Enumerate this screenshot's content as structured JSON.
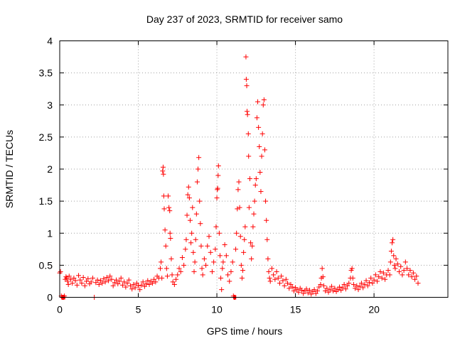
{
  "chart_data": {
    "type": "scatter",
    "title": "Day 237 of 2023, SRMTID for receiver samo",
    "xlabel": "GPS time / hours",
    "ylabel": "SRMTID / TECUs",
    "xlim": [
      0,
      24.7
    ],
    "ylim": [
      0,
      4
    ],
    "xticks": [
      0,
      5,
      10,
      15,
      20
    ],
    "xtick_labels": [
      "0",
      "5",
      "10",
      "15",
      "20"
    ],
    "yticks": [
      0,
      0.5,
      1,
      1.5,
      2,
      2.5,
      3,
      3.5,
      4
    ],
    "ytick_labels": [
      "0",
      "0.5",
      "1",
      "1.5",
      "2",
      "2.5",
      "3",
      "3.5",
      "4"
    ],
    "grid": true,
    "marker": "plus",
    "marker_color": "#ff0000",
    "series": [
      {
        "name": "SRMTID",
        "points": [
          [
            0.0,
            0.38
          ],
          [
            0.05,
            0.4
          ],
          [
            0.1,
            0.02
          ],
          [
            0.15,
            0.0
          ],
          [
            0.2,
            0.0
          ],
          [
            0.25,
            0.0
          ],
          [
            0.3,
            0.02
          ],
          [
            0.35,
            0.28
          ],
          [
            0.4,
            0.32
          ],
          [
            0.45,
            0.3
          ],
          [
            0.5,
            0.25
          ],
          [
            0.55,
            0.2
          ],
          [
            0.6,
            0.33
          ],
          [
            0.7,
            0.28
          ],
          [
            0.8,
            0.22
          ],
          [
            0.9,
            0.3
          ],
          [
            1.0,
            0.26
          ],
          [
            1.1,
            0.19
          ],
          [
            1.2,
            0.34
          ],
          [
            1.3,
            0.27
          ],
          [
            1.4,
            0.22
          ],
          [
            1.5,
            0.31
          ],
          [
            1.6,
            0.18
          ],
          [
            1.7,
            0.25
          ],
          [
            1.8,
            0.29
          ],
          [
            1.9,
            0.21
          ],
          [
            2.0,
            0.24
          ],
          [
            2.1,
            0.3
          ],
          [
            2.2,
            0.0
          ],
          [
            2.3,
            0.23
          ],
          [
            2.4,
            0.27
          ],
          [
            2.5,
            0.2
          ],
          [
            2.6,
            0.26
          ],
          [
            2.7,
            0.22
          ],
          [
            2.8,
            0.29
          ],
          [
            2.9,
            0.24
          ],
          [
            3.0,
            0.31
          ],
          [
            3.1,
            0.26
          ],
          [
            3.2,
            0.33
          ],
          [
            3.3,
            0.28
          ],
          [
            3.4,
            0.18
          ],
          [
            3.5,
            0.23
          ],
          [
            3.6,
            0.27
          ],
          [
            3.7,
            0.21
          ],
          [
            3.8,
            0.25
          ],
          [
            3.9,
            0.3
          ],
          [
            4.0,
            0.19
          ],
          [
            4.1,
            0.24
          ],
          [
            4.2,
            0.16
          ],
          [
            4.3,
            0.22
          ],
          [
            4.4,
            0.27
          ],
          [
            4.5,
            0.18
          ],
          [
            4.6,
            0.13
          ],
          [
            4.7,
            0.2
          ],
          [
            4.8,
            0.15
          ],
          [
            4.9,
            0.22
          ],
          [
            5.0,
            0.18
          ],
          [
            5.1,
            0.12
          ],
          [
            5.2,
            0.19
          ],
          [
            5.3,
            0.24
          ],
          [
            5.4,
            0.17
          ],
          [
            5.5,
            0.21
          ],
          [
            5.6,
            0.26
          ],
          [
            5.7,
            0.2
          ],
          [
            5.8,
            0.25
          ],
          [
            5.9,
            0.22
          ],
          [
            6.0,
            0.28
          ],
          [
            6.1,
            0.24
          ],
          [
            6.2,
            0.33
          ],
          [
            6.3,
            0.3
          ],
          [
            6.4,
            0.45
          ],
          [
            6.45,
            0.55
          ],
          [
            6.5,
            0.3
          ],
          [
            6.55,
            1.97
          ],
          [
            6.58,
            2.03
          ],
          [
            6.6,
            1.92
          ],
          [
            6.62,
            1.58
          ],
          [
            6.65,
            1.38
          ],
          [
            6.7,
            1.05
          ],
          [
            6.75,
            0.8
          ],
          [
            6.8,
            0.45
          ],
          [
            6.85,
            0.33
          ],
          [
            6.9,
            1.58
          ],
          [
            6.95,
            1.4
          ],
          [
            7.0,
            1.35
          ],
          [
            7.02,
            1.0
          ],
          [
            7.05,
            0.92
          ],
          [
            7.1,
            0.6
          ],
          [
            7.15,
            0.35
          ],
          [
            7.2,
            0.24
          ],
          [
            7.3,
            0.2
          ],
          [
            7.4,
            0.28
          ],
          [
            7.5,
            0.35
          ],
          [
            7.6,
            0.45
          ],
          [
            7.7,
            0.4
          ],
          [
            7.8,
            0.62
          ],
          [
            7.9,
            0.5
          ],
          [
            8.0,
            0.75
          ],
          [
            8.05,
            0.9
          ],
          [
            8.1,
            1.28
          ],
          [
            8.15,
            1.6
          ],
          [
            8.2,
            1.72
          ],
          [
            8.25,
            1.55
          ],
          [
            8.3,
            1.2
          ],
          [
            8.35,
            0.85
          ],
          [
            8.4,
            1.0
          ],
          [
            8.45,
            1.4
          ],
          [
            8.5,
            0.7
          ],
          [
            8.55,
            0.4
          ],
          [
            8.6,
            0.55
          ],
          [
            8.65,
            0.9
          ],
          [
            8.7,
            1.3
          ],
          [
            8.75,
            1.8
          ],
          [
            8.8,
            2.0
          ],
          [
            8.85,
            2.18
          ],
          [
            8.9,
            1.5
          ],
          [
            8.95,
            1.15
          ],
          [
            9.0,
            0.8
          ],
          [
            9.05,
            0.45
          ],
          [
            9.1,
            0.35
          ],
          [
            9.2,
            0.6
          ],
          [
            9.3,
            0.5
          ],
          [
            9.4,
            0.8
          ],
          [
            9.5,
            0.95
          ],
          [
            9.6,
            0.7
          ],
          [
            9.7,
            0.4
          ],
          [
            9.8,
            0.55
          ],
          [
            9.9,
            0.75
          ],
          [
            9.95,
            1.1
          ],
          [
            10.0,
            1.55
          ],
          [
            10.03,
            1.68
          ],
          [
            10.05,
            1.7
          ],
          [
            10.08,
            1.9
          ],
          [
            10.1,
            2.05
          ],
          [
            10.15,
            1.0
          ],
          [
            10.2,
            0.65
          ],
          [
            10.25,
            0.3
          ],
          [
            10.3,
            0.12
          ],
          [
            10.35,
            0.45
          ],
          [
            10.4,
            0.55
          ],
          [
            10.5,
            0.82
          ],
          [
            10.6,
            0.65
          ],
          [
            10.7,
            0.35
          ],
          [
            10.8,
            0.25
          ],
          [
            10.9,
            0.4
          ],
          [
            11.0,
            0.55
          ],
          [
            11.05,
            0.02
          ],
          [
            11.1,
            0.0
          ],
          [
            11.15,
            0.0
          ],
          [
            11.2,
            0.75
          ],
          [
            11.25,
            1.0
          ],
          [
            11.3,
            1.38
          ],
          [
            11.35,
            1.68
          ],
          [
            11.4,
            1.8
          ],
          [
            11.45,
            1.4
          ],
          [
            11.5,
            0.95
          ],
          [
            11.55,
            0.5
          ],
          [
            11.6,
            0.3
          ],
          [
            11.65,
            0.42
          ],
          [
            11.7,
            0.7
          ],
          [
            11.75,
            0.9
          ],
          [
            11.8,
            1.1
          ],
          [
            11.85,
            3.75
          ],
          [
            11.87,
            3.4
          ],
          [
            11.9,
            3.3
          ],
          [
            11.92,
            2.9
          ],
          [
            11.95,
            2.85
          ],
          [
            12.0,
            2.55
          ],
          [
            12.02,
            2.2
          ],
          [
            12.05,
            1.4
          ],
          [
            12.1,
            1.85
          ],
          [
            12.15,
            0.85
          ],
          [
            12.2,
            0.6
          ],
          [
            12.25,
            0.8
          ],
          [
            12.3,
            1.1
          ],
          [
            12.35,
            1.3
          ],
          [
            12.4,
            1.5
          ],
          [
            12.45,
            1.75
          ],
          [
            12.5,
            1.85
          ],
          [
            12.55,
            2.8
          ],
          [
            12.6,
            3.05
          ],
          [
            12.65,
            2.65
          ],
          [
            12.7,
            2.35
          ],
          [
            12.75,
            1.95
          ],
          [
            12.8,
            1.65
          ],
          [
            12.85,
            2.2
          ],
          [
            12.9,
            2.55
          ],
          [
            12.95,
            3.0
          ],
          [
            13.0,
            3.08
          ],
          [
            13.05,
            2.3
          ],
          [
            13.1,
            1.5
          ],
          [
            13.15,
            1.2
          ],
          [
            13.2,
            0.9
          ],
          [
            13.25,
            0.6
          ],
          [
            13.3,
            0.4
          ],
          [
            13.35,
            0.3
          ],
          [
            13.4,
            0.25
          ],
          [
            13.5,
            0.45
          ],
          [
            13.6,
            0.35
          ],
          [
            13.7,
            0.28
          ],
          [
            13.8,
            0.4
          ],
          [
            13.9,
            0.3
          ],
          [
            14.0,
            0.22
          ],
          [
            14.1,
            0.33
          ],
          [
            14.2,
            0.26
          ],
          [
            14.3,
            0.18
          ],
          [
            14.4,
            0.28
          ],
          [
            14.5,
            0.22
          ],
          [
            14.6,
            0.14
          ],
          [
            14.7,
            0.2
          ],
          [
            14.8,
            0.16
          ],
          [
            14.9,
            0.1
          ],
          [
            15.0,
            0.15
          ],
          [
            15.1,
            0.12
          ],
          [
            15.2,
            0.08
          ],
          [
            15.3,
            0.14
          ],
          [
            15.4,
            0.11
          ],
          [
            15.5,
            0.06
          ],
          [
            15.6,
            0.1
          ],
          [
            15.7,
            0.13
          ],
          [
            15.8,
            0.07
          ],
          [
            15.9,
            0.11
          ],
          [
            16.0,
            0.05
          ],
          [
            16.1,
            0.09
          ],
          [
            16.2,
            0.12
          ],
          [
            16.3,
            0.06
          ],
          [
            16.4,
            0.1
          ],
          [
            16.5,
            0.16
          ],
          [
            16.6,
            0.2
          ],
          [
            16.65,
            0.3
          ],
          [
            16.7,
            0.45
          ],
          [
            16.75,
            0.32
          ],
          [
            16.8,
            0.18
          ],
          [
            16.9,
            0.1
          ],
          [
            17.0,
            0.14
          ],
          [
            17.1,
            0.08
          ],
          [
            17.2,
            0.12
          ],
          [
            17.3,
            0.17
          ],
          [
            17.4,
            0.1
          ],
          [
            17.5,
            0.14
          ],
          [
            17.6,
            0.09
          ],
          [
            17.7,
            0.12
          ],
          [
            17.8,
            0.16
          ],
          [
            17.9,
            0.11
          ],
          [
            18.0,
            0.15
          ],
          [
            18.1,
            0.2
          ],
          [
            18.2,
            0.13
          ],
          [
            18.3,
            0.18
          ],
          [
            18.4,
            0.22
          ],
          [
            18.5,
            0.3
          ],
          [
            18.55,
            0.42
          ],
          [
            18.6,
            0.45
          ],
          [
            18.65,
            0.3
          ],
          [
            18.7,
            0.2
          ],
          [
            18.8,
            0.14
          ],
          [
            18.9,
            0.18
          ],
          [
            19.0,
            0.12
          ],
          [
            19.1,
            0.17
          ],
          [
            19.2,
            0.22
          ],
          [
            19.3,
            0.15
          ],
          [
            19.4,
            0.2
          ],
          [
            19.5,
            0.26
          ],
          [
            19.6,
            0.18
          ],
          [
            19.7,
            0.23
          ],
          [
            19.8,
            0.3
          ],
          [
            19.9,
            0.22
          ],
          [
            20.0,
            0.27
          ],
          [
            20.1,
            0.35
          ],
          [
            20.2,
            0.25
          ],
          [
            20.3,
            0.32
          ],
          [
            20.4,
            0.4
          ],
          [
            20.5,
            0.3
          ],
          [
            20.6,
            0.38
          ],
          [
            20.7,
            0.28
          ],
          [
            20.8,
            0.35
          ],
          [
            20.9,
            0.42
          ],
          [
            21.0,
            0.35
          ],
          [
            21.05,
            0.55
          ],
          [
            21.1,
            0.72
          ],
          [
            21.15,
            0.85
          ],
          [
            21.2,
            0.9
          ],
          [
            21.25,
            0.65
          ],
          [
            21.3,
            0.5
          ],
          [
            21.35,
            0.45
          ],
          [
            21.4,
            0.6
          ],
          [
            21.5,
            0.52
          ],
          [
            21.6,
            0.4
          ],
          [
            21.7,
            0.48
          ],
          [
            21.8,
            0.35
          ],
          [
            21.9,
            0.42
          ],
          [
            22.0,
            0.55
          ],
          [
            22.1,
            0.45
          ],
          [
            22.2,
            0.35
          ],
          [
            22.3,
            0.42
          ],
          [
            22.4,
            0.32
          ],
          [
            22.5,
            0.38
          ],
          [
            22.6,
            0.28
          ],
          [
            22.7,
            0.33
          ],
          [
            22.8,
            0.22
          ]
        ],
        "zero_segments": [
          [
            0.1,
            0.35
          ],
          [
            11.05,
            11.2
          ]
        ]
      }
    ]
  }
}
